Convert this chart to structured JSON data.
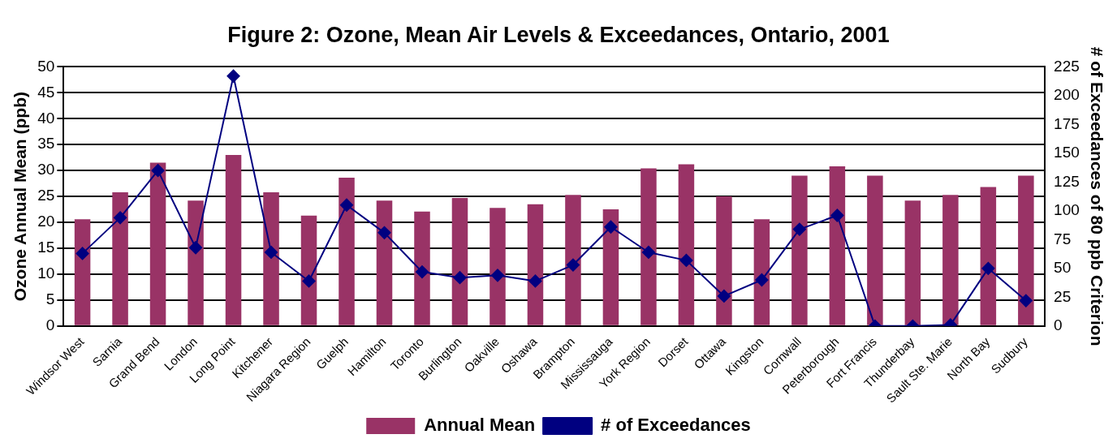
{
  "chart_data": {
    "type": "bar",
    "title": "Figure 2: Ozone, Mean Air Levels & Exceedances, Ontario, 2001",
    "ylabel": "Ozone Annual Mean (ppb)",
    "y2label": "# of Exceedances of 80 ppb Criterion",
    "categories": [
      "Windsor West",
      "Sarnia",
      "Grand Bend",
      "London",
      "Long Point",
      "Kitchener",
      "Niagara Region",
      "Guelph",
      "Hamilton",
      "Toronto",
      "Burlington",
      "Oakville",
      "Oshawa",
      "Brampton",
      "Mississauga",
      "York Region",
      "Dorset",
      "Ottawa",
      "Kingston",
      "Cornwall",
      "Peterborough",
      "Fort Francis",
      "Thunderbay",
      "Sault Ste. Marie",
      "North Bay",
      "Sudbury"
    ],
    "series": [
      {
        "name": "Annual Mean",
        "color": "#993366",
        "values": [
          20.6,
          25.8,
          31.5,
          24.2,
          33.0,
          25.8,
          21.3,
          28.6,
          24.2,
          22.1,
          24.7,
          22.8,
          23.5,
          25.3,
          22.5,
          30.4,
          31.2,
          25.0,
          20.6,
          29.0,
          30.8,
          29.0,
          24.2,
          25.3,
          26.8,
          29.0
        ]
      },
      {
        "name": "# of Exceedances",
        "type": "line",
        "axis": "y2",
        "color": "#000080",
        "values": [
          63,
          94,
          135,
          68,
          217,
          64,
          39,
          105,
          81,
          47,
          42,
          44,
          39,
          53,
          86,
          64,
          57,
          26,
          40,
          84,
          96,
          0,
          0,
          1,
          50,
          22
        ]
      }
    ],
    "ylim": [
      0,
      50
    ],
    "yticks": [
      0,
      5,
      10,
      15,
      20,
      25,
      30,
      35,
      40,
      45,
      50
    ],
    "y2lim": [
      0,
      225
    ],
    "y2ticks": [
      0,
      25,
      50,
      75,
      100,
      125,
      150,
      175,
      200,
      225
    ],
    "grid": "y",
    "legend": "bottom",
    "marker": "diamond",
    "line_style": "solid"
  }
}
